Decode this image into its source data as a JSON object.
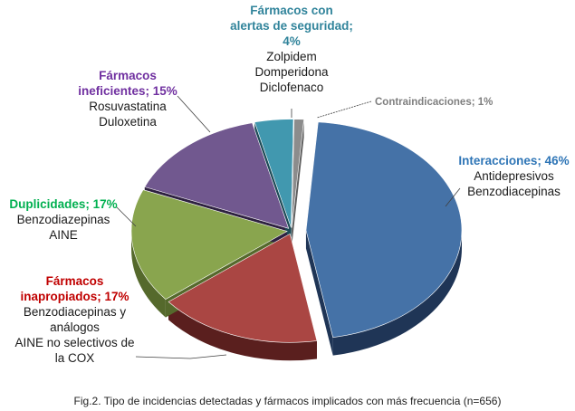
{
  "chart_data": {
    "type": "pie",
    "style": "3d-exploded",
    "title": "",
    "caption": "Fig.2. Tipo de incidencias detectadas y fármacos implicados con más frecuencia (n=656)",
    "n": 656,
    "slices": [
      {
        "key": "contra",
        "label": "Contraindicaciones",
        "value": 1,
        "pct_label": "Contraindicaciones; 1%",
        "color": "#8c8c8c",
        "side": "#5e5e5e",
        "label_color": "#7f7f7f",
        "drugs": []
      },
      {
        "key": "inter",
        "label": "Interacciones",
        "value": 46,
        "pct_label": "Interacciones; 46%",
        "color": "#4572a7",
        "side": "#1f3556",
        "label_color": "#2e75b6",
        "drugs": [
          "Antidepresivos",
          "Benzodiacepinas"
        ],
        "exploded": true
      },
      {
        "key": "inap",
        "label": "Fármacos inapropiados",
        "value": 17,
        "pct_label": "inapropiados; 17%",
        "pct_head": "Fármacos",
        "color": "#aa4643",
        "side": "#5a1f1e",
        "label_color": "#c00000",
        "drugs": [
          "Benzodiacepinas y",
          "análogos",
          "AINE no selectivos de",
          "la COX"
        ]
      },
      {
        "key": "dup",
        "label": "Duplicidades",
        "value": 17,
        "pct_label": "Duplicidades; 17%",
        "color": "#89a54e",
        "side": "#55692c",
        "label_color": "#00b050",
        "drugs": [
          "Benzodiazepinas",
          "AINE"
        ]
      },
      {
        "key": "inef",
        "label": "Fármacos ineficientes",
        "value": 15,
        "pct_label": "ineficientes; 15%",
        "pct_head": "Fármacos",
        "color": "#71588f",
        "side": "#2e2140",
        "label_color": "#7030a0",
        "drugs": [
          "Rosuvastatina",
          "Duloxetina"
        ]
      },
      {
        "key": "alert",
        "label": "Fármacos con alertas de seguridad",
        "value": 4,
        "pct_label": "4%",
        "pct_head": "Fármacos con",
        "pct_head2": "alertas de seguridad;",
        "color": "#4198af",
        "side": "#1c4a56",
        "label_color": "#31849b",
        "drugs": [
          "Zolpidem",
          "Domperidona",
          "Diclofenaco"
        ]
      }
    ],
    "legend": "none (data labels with leader lines)"
  }
}
